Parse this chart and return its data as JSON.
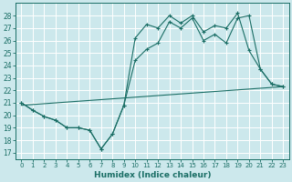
{
  "title": "",
  "xlabel": "Humidex (Indice chaleur)",
  "ylabel": "",
  "bg_color": "#cce8ec",
  "grid_color": "#ffffff",
  "line_color": "#1a6e65",
  "xlim": [
    -0.5,
    23.5
  ],
  "ylim": [
    16.5,
    29.0
  ],
  "yticks": [
    17,
    18,
    19,
    20,
    21,
    22,
    23,
    24,
    25,
    26,
    27,
    28
  ],
  "xticks": [
    0,
    1,
    2,
    3,
    4,
    5,
    6,
    7,
    8,
    9,
    10,
    11,
    12,
    13,
    14,
    15,
    16,
    17,
    18,
    19,
    20,
    21,
    22,
    23
  ],
  "series1_x": [
    0,
    1,
    2,
    3,
    4,
    5,
    6,
    7,
    8,
    9,
    10,
    11,
    12,
    13,
    14,
    15,
    16,
    17,
    18,
    19,
    20,
    21,
    22,
    23
  ],
  "series1_y": [
    21.0,
    20.4,
    19.9,
    19.6,
    19.0,
    19.0,
    18.8,
    17.3,
    18.5,
    20.8,
    26.2,
    27.3,
    27.0,
    28.0,
    27.4,
    28.0,
    26.7,
    27.2,
    27.0,
    28.2,
    25.2,
    23.7,
    22.5,
    22.3
  ],
  "series2_x": [
    0,
    1,
    2,
    3,
    4,
    5,
    6,
    7,
    8,
    9,
    10,
    11,
    12,
    13,
    14,
    15,
    16,
    17,
    18,
    19,
    20,
    21,
    22,
    23
  ],
  "series2_y": [
    21.0,
    20.4,
    19.9,
    19.6,
    19.0,
    19.0,
    18.8,
    17.3,
    18.5,
    20.8,
    24.4,
    25.3,
    25.8,
    27.5,
    27.0,
    27.8,
    26.0,
    26.5,
    25.8,
    27.8,
    28.0,
    23.7,
    22.5,
    22.3
  ],
  "series3_x": [
    0,
    23
  ],
  "series3_y": [
    20.8,
    22.3
  ]
}
